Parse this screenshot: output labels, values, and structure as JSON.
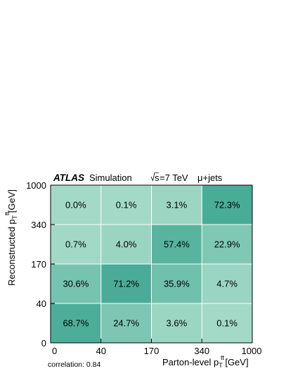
{
  "chart_data": {
    "type": "heatmap",
    "header": {
      "experiment": "ATLAS",
      "label": "Simulation",
      "energy_sqrt": "s",
      "energy_rest": "=7 TeV",
      "channel": "μ+jets"
    },
    "xlabel": {
      "main": "Parton-level p",
      "sub": "T",
      "sup": "tt",
      "unit": " [GeV]"
    },
    "ylabel": {
      "main": "Reconstructed p",
      "sub": "T",
      "sup": "tt",
      "unit": " [GeV]"
    },
    "x_bin_edges": [
      "0",
      "40",
      "170",
      "340",
      "1000"
    ],
    "y_bin_edges": [
      "0",
      "40",
      "170",
      "340",
      "1000"
    ],
    "cells": [
      {
        "x": 0,
        "y": 0,
        "value": 68.7,
        "label": "68.7%"
      },
      {
        "x": 1,
        "y": 0,
        "value": 24.7,
        "label": "24.7%"
      },
      {
        "x": 2,
        "y": 0,
        "value": 3.6,
        "label": "3.6%"
      },
      {
        "x": 3,
        "y": 0,
        "value": 0.1,
        "label": "0.1%"
      },
      {
        "x": 0,
        "y": 1,
        "value": 30.6,
        "label": "30.6%"
      },
      {
        "x": 1,
        "y": 1,
        "value": 71.2,
        "label": "71.2%"
      },
      {
        "x": 2,
        "y": 1,
        "value": 35.9,
        "label": "35.9%"
      },
      {
        "x": 3,
        "y": 1,
        "value": 4.7,
        "label": "4.7%"
      },
      {
        "x": 0,
        "y": 2,
        "value": 0.7,
        "label": "0.7%"
      },
      {
        "x": 1,
        "y": 2,
        "value": 4.0,
        "label": "4.0%"
      },
      {
        "x": 2,
        "y": 2,
        "value": 57.4,
        "label": "57.4%"
      },
      {
        "x": 3,
        "y": 2,
        "value": 22.9,
        "label": "22.9%"
      },
      {
        "x": 0,
        "y": 3,
        "value": 0.0,
        "label": "0.0%"
      },
      {
        "x": 1,
        "y": 3,
        "value": 0.1,
        "label": "0.1%"
      },
      {
        "x": 2,
        "y": 3,
        "value": 3.1,
        "label": "3.1%"
      },
      {
        "x": 3,
        "y": 3,
        "value": 72.3,
        "label": "72.3%"
      }
    ],
    "value_range": [
      0,
      100
    ],
    "colors": {
      "low": "#a3dac7",
      "high": "#2e9e89",
      "grid_line": "#ffffff"
    },
    "grid": true,
    "note": "correlation: 0.84"
  }
}
